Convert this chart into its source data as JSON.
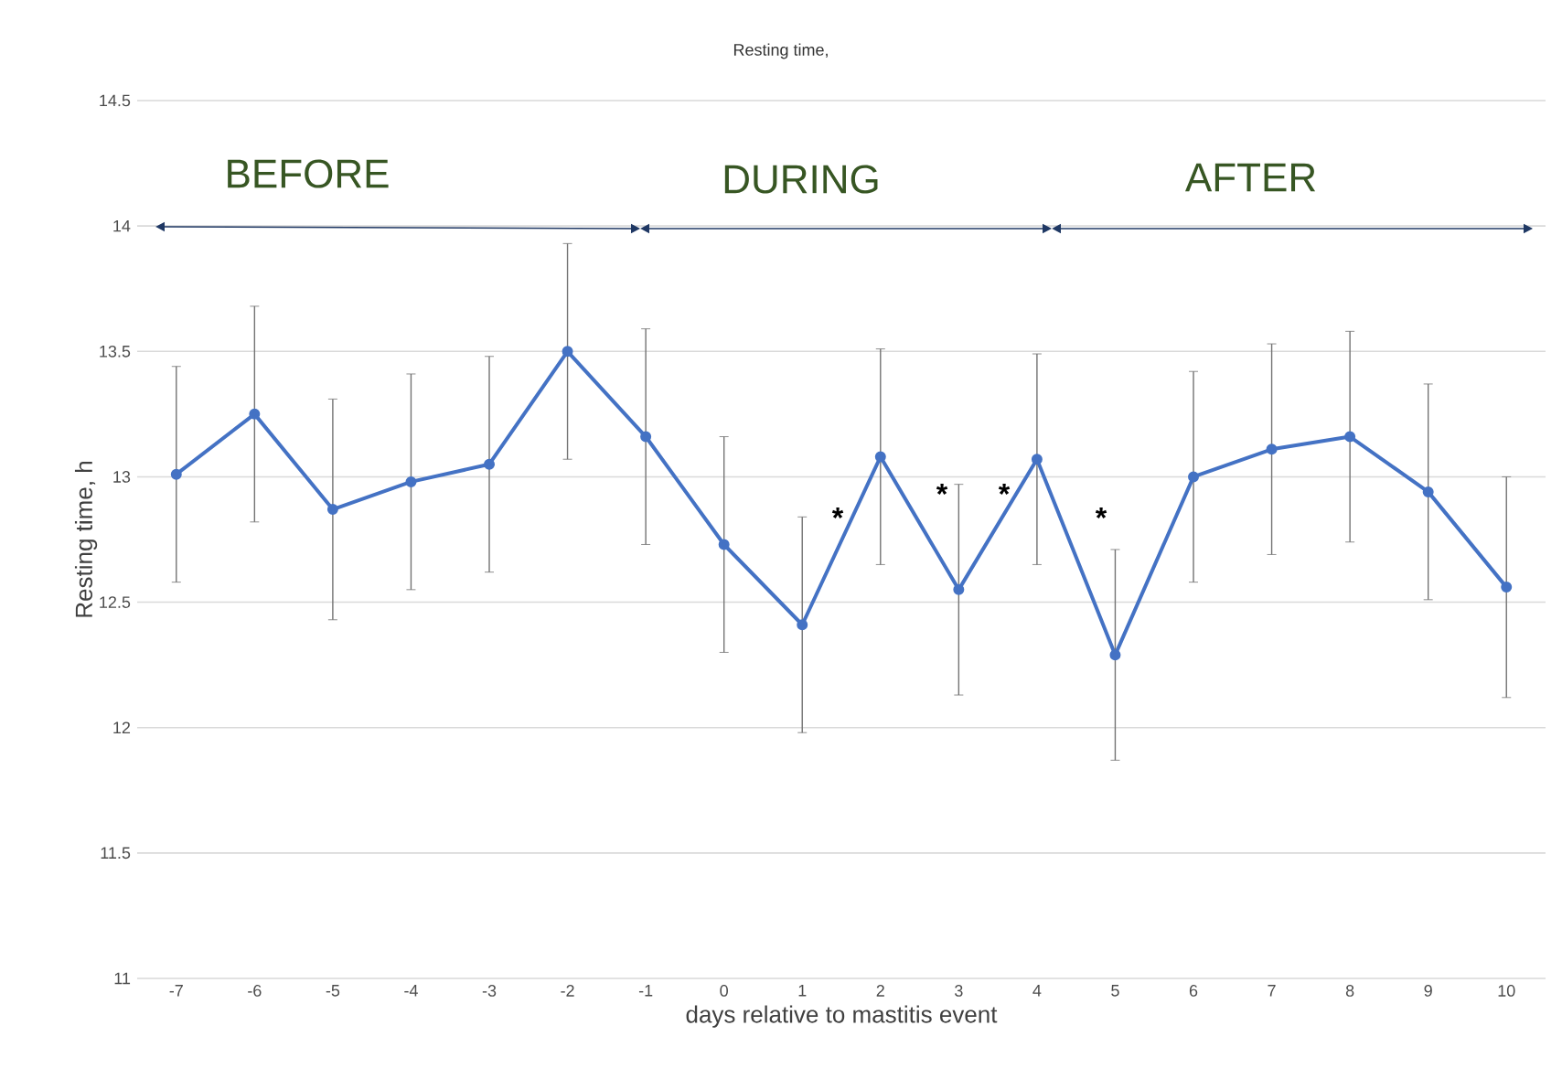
{
  "chart_data": {
    "type": "line",
    "title": "Resting time,",
    "xlabel": "days relative to mastitis event",
    "ylabel": "Resting time, h",
    "x": [
      -7,
      -6,
      -5,
      -4,
      -3,
      -2,
      -1,
      0,
      1,
      2,
      3,
      4,
      5,
      6,
      7,
      8,
      9,
      10
    ],
    "values": [
      13.01,
      13.25,
      12.87,
      12.98,
      13.05,
      13.5,
      13.16,
      12.73,
      12.41,
      13.08,
      12.55,
      13.07,
      12.29,
      13.0,
      13.11,
      13.16,
      12.94,
      12.56
    ],
    "errors": [
      0.43,
      0.43,
      0.44,
      0.43,
      0.43,
      0.43,
      0.43,
      0.43,
      0.43,
      0.43,
      0.42,
      0.42,
      0.42,
      0.42,
      0.42,
      0.42,
      0.43,
      0.44
    ],
    "color": "#4472c4",
    "marker": "circle",
    "line_style": "solid",
    "grid": "y",
    "xlim": [
      -7.5,
      10.5
    ],
    "xticks": [
      -7,
      -6,
      -5,
      -4,
      -3,
      -2,
      -1,
      0,
      1,
      2,
      3,
      4,
      5,
      6,
      7,
      8,
      9,
      10
    ],
    "ylim": [
      11,
      14.5
    ],
    "yticks": [
      11,
      11.5,
      12,
      12.5,
      13,
      13.5,
      14,
      14.5
    ],
    "annotations": [
      "BEFORE",
      "DURING",
      "AFTER",
      "*",
      "*",
      "*",
      "*"
    ]
  }
}
